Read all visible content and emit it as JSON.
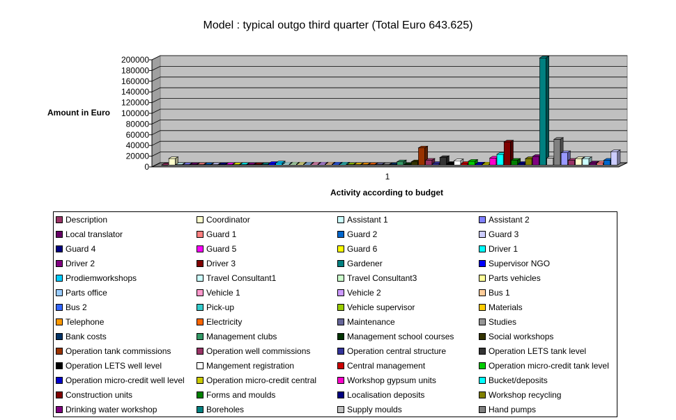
{
  "chart_data": {
    "type": "bar",
    "title": "Model : typical outgo third quarter (Total Euro 643.625)",
    "ylabel": "Amount in Euro",
    "xlabel": "Activity according to budget",
    "categories": [
      "1"
    ],
    "ylim": [
      0,
      200000
    ],
    "yticks": [
      0,
      20000,
      40000,
      60000,
      80000,
      100000,
      120000,
      140000,
      160000,
      180000,
      200000
    ],
    "grid": true,
    "legend_position": "bottom",
    "series": [
      {
        "name": "Description",
        "value": 0,
        "color": "#993366"
      },
      {
        "name": "Coordinator",
        "value": 12000,
        "color": "#FFFFCC"
      },
      {
        "name": "Assistant 1",
        "value": 1000,
        "color": "#CCFFFF"
      },
      {
        "name": "Assistant 2",
        "value": 1000,
        "color": "#8080FF"
      },
      {
        "name": "Local translator",
        "value": 1000,
        "color": "#660066"
      },
      {
        "name": "Guard 1",
        "value": 1000,
        "color": "#FF8080"
      },
      {
        "name": "Guard 2",
        "value": 1000,
        "color": "#0066CC"
      },
      {
        "name": "Guard 3",
        "value": 1000,
        "color": "#CCCCFF"
      },
      {
        "name": "Guard 4",
        "value": 1000,
        "color": "#000080"
      },
      {
        "name": "Guard 5",
        "value": 1000,
        "color": "#FF00FF"
      },
      {
        "name": "Guard 6",
        "value": 1000,
        "color": "#FFFF00"
      },
      {
        "name": "Driver 1",
        "value": 1000,
        "color": "#00FFFF"
      },
      {
        "name": "Driver 2",
        "value": 1000,
        "color": "#800080"
      },
      {
        "name": "Driver 3",
        "value": 1000,
        "color": "#800000"
      },
      {
        "name": "Gardener",
        "value": 1000,
        "color": "#008080"
      },
      {
        "name": "Supervisor NGO",
        "value": 3000,
        "color": "#0000FF"
      },
      {
        "name": "Prodiemworkshops",
        "value": 4000,
        "color": "#00CCFF"
      },
      {
        "name": "Travel Consultant1",
        "value": 2000,
        "color": "#CCFFFF"
      },
      {
        "name": "Travel Consultant3",
        "value": 2000,
        "color": "#CCFFCC"
      },
      {
        "name": "Parts vehicles",
        "value": 2000,
        "color": "#FFFF99"
      },
      {
        "name": "Parts office",
        "value": 2000,
        "color": "#99CCFF"
      },
      {
        "name": "Vehicle 1",
        "value": 2000,
        "color": "#FF99CC"
      },
      {
        "name": "Vehicle 2",
        "value": 2000,
        "color": "#CC99FF"
      },
      {
        "name": "Bus 1",
        "value": 2000,
        "color": "#FFCC99"
      },
      {
        "name": "Bus 2",
        "value": 2000,
        "color": "#3366FF"
      },
      {
        "name": "Pick-up",
        "value": 2000,
        "color": "#33CCCC"
      },
      {
        "name": "Vehicle supervisor",
        "value": 1000,
        "color": "#99CC00"
      },
      {
        "name": "Materials",
        "value": 1000,
        "color": "#FFCC00"
      },
      {
        "name": "Telephone",
        "value": 1000,
        "color": "#FF9900"
      },
      {
        "name": "Electricity",
        "value": 1000,
        "color": "#FF6600"
      },
      {
        "name": "Maintenance",
        "value": 1000,
        "color": "#666699"
      },
      {
        "name": "Studies",
        "value": 1000,
        "color": "#969696"
      },
      {
        "name": "Bank costs",
        "value": 1000,
        "color": "#003366"
      },
      {
        "name": "Management clubs",
        "value": 6000,
        "color": "#339966"
      },
      {
        "name": "Management school courses",
        "value": 1000,
        "color": "#003300"
      },
      {
        "name": "Social workshops",
        "value": 6000,
        "color": "#333300"
      },
      {
        "name": "Operation tank commissions",
        "value": 32000,
        "color": "#993300"
      },
      {
        "name": "Operation well commissions",
        "value": 9000,
        "color": "#993366"
      },
      {
        "name": "Operation central structure",
        "value": 3000,
        "color": "#333399"
      },
      {
        "name": "Operation LETS tank level",
        "value": 14000,
        "color": "#333333"
      },
      {
        "name": "Operation LETS well level",
        "value": 3000,
        "color": "#000000"
      },
      {
        "name": "Mangement registration",
        "value": 8000,
        "color": "#FFFFFF"
      },
      {
        "name": "Central management",
        "value": 3000,
        "color": "#CC0000"
      },
      {
        "name": "Operation micro-credit tank level",
        "value": 7000,
        "color": "#00CC00"
      },
      {
        "name": "Operation micro-credit well level",
        "value": 2000,
        "color": "#0000CC"
      },
      {
        "name": "Operation micro-credit central",
        "value": 2000,
        "color": "#CCCC00"
      },
      {
        "name": "Workshop gypsum units",
        "value": 13000,
        "color": "#FF00CC"
      },
      {
        "name": "Bucket/deposits",
        "value": 20000,
        "color": "#00FFFF"
      },
      {
        "name": "Construction units",
        "value": 43000,
        "color": "#800000"
      },
      {
        "name": "Forms and moulds",
        "value": 9000,
        "color": "#008000"
      },
      {
        "name": "Localisation deposits",
        "value": 3000,
        "color": "#000080"
      },
      {
        "name": "Workshop recycling",
        "value": 12000,
        "color": "#808000"
      },
      {
        "name": "Drinking water workshop",
        "value": 16000,
        "color": "#800080"
      },
      {
        "name": "Boreholes",
        "value": 200000,
        "color": "#008080"
      },
      {
        "name": "Supply moulds",
        "value": 13000,
        "color": "#C0C0C0"
      },
      {
        "name": "Hand pumps",
        "value": 48000,
        "color": "#808080"
      },
      {
        "name": "",
        "value": 23000,
        "color": "#9999FF"
      },
      {
        "name": "",
        "value": 9000,
        "color": "#993366"
      },
      {
        "name": "",
        "value": 12000,
        "color": "#FFFFCC"
      },
      {
        "name": "",
        "value": 12000,
        "color": "#CCFFFF"
      },
      {
        "name": "",
        "value": 4000,
        "color": "#660066"
      },
      {
        "name": "",
        "value": 4000,
        "color": "#FF8080"
      },
      {
        "name": "",
        "value": 9000,
        "color": "#0066CC"
      },
      {
        "name": "",
        "value": 25000,
        "color": "#CCCCFF"
      }
    ]
  }
}
